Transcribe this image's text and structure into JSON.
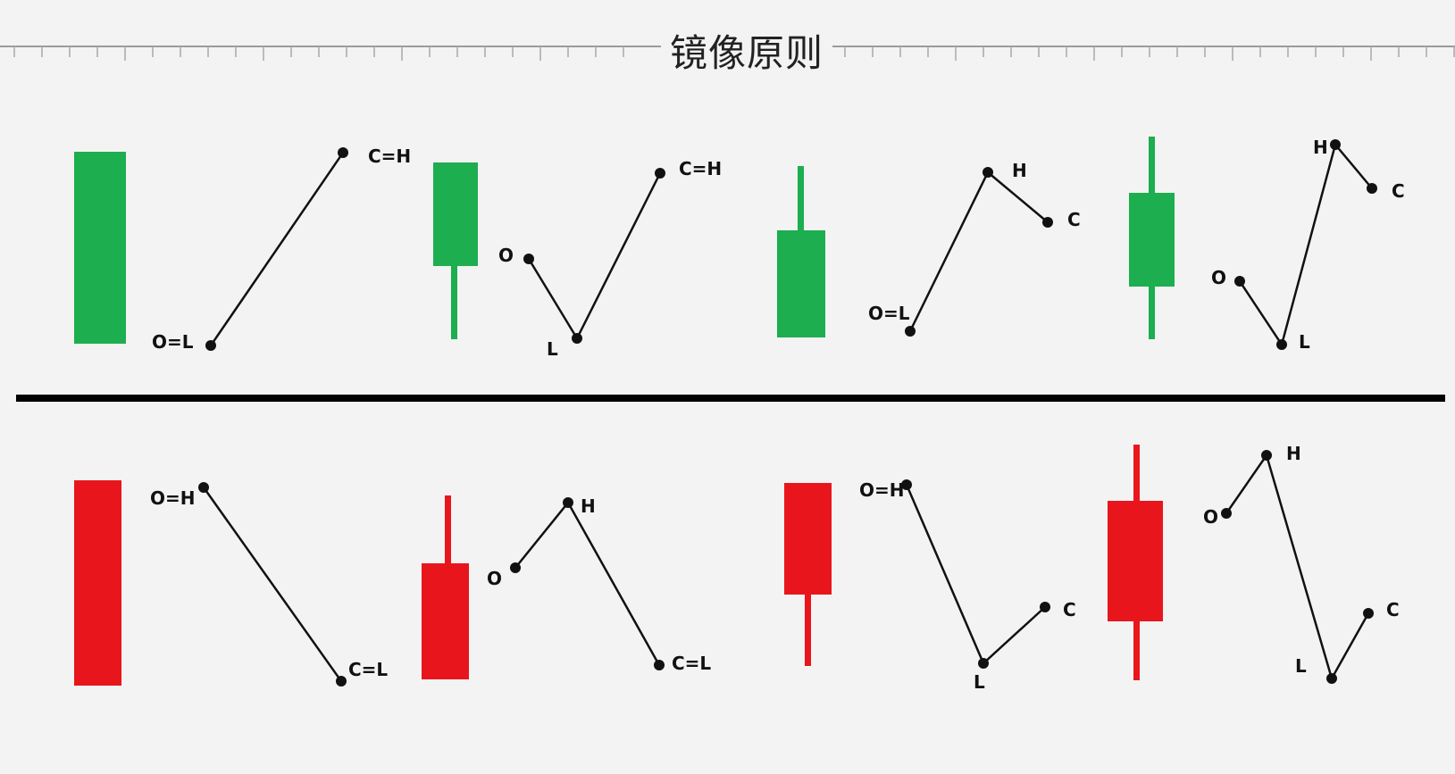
{
  "title": "镜像原则",
  "colors": {
    "bull": "#1cae4f",
    "bear": "#e8161c",
    "line": "#111111",
    "background": "#f3f3f3"
  },
  "labels": {
    "top1": {
      "a": "O=L",
      "b": "C=H"
    },
    "top2": {
      "o": "O",
      "l": "L",
      "c": "C=H"
    },
    "top3": {
      "o": "O=L",
      "h": "H",
      "c": "C"
    },
    "top4": {
      "o": "O",
      "l": "L",
      "h": "H",
      "c": "C"
    },
    "bot1": {
      "a": "O=H",
      "b": "C=L"
    },
    "bot2": {
      "o": "O",
      "h": "H",
      "c": "C=L"
    },
    "bot3": {
      "o": "O=H",
      "l": "L",
      "c": "C"
    },
    "bot4": {
      "o": "O",
      "h": "H",
      "l": "L",
      "c": "C"
    }
  }
}
